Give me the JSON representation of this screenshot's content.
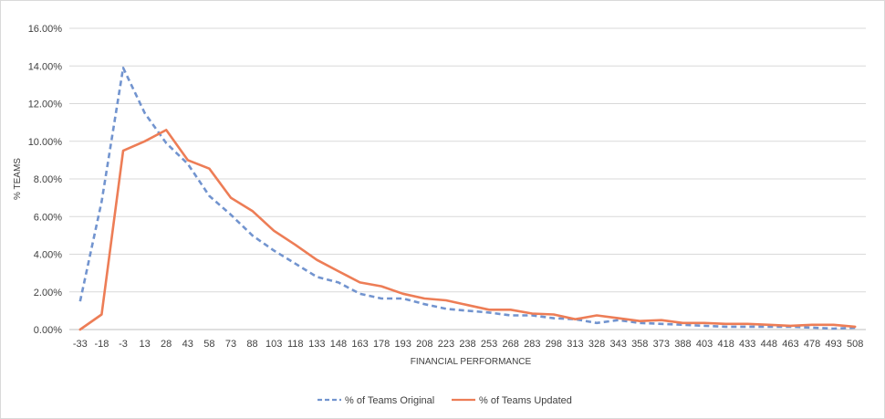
{
  "chart_data": {
    "type": "line",
    "title": "",
    "xlabel": "FINANCIAL PERFORMANCE",
    "ylabel": "% TEAMS",
    "ylim": [
      0,
      16
    ],
    "yticks": [
      "0.00%",
      "2.00%",
      "4.00%",
      "6.00%",
      "8.00%",
      "10.00%",
      "12.00%",
      "14.00%",
      "16.00%"
    ],
    "grid": true,
    "legend_position": "bottom",
    "categories": [
      "-33",
      "-18",
      "-3",
      "13",
      "28",
      "43",
      "58",
      "73",
      "88",
      "103",
      "118",
      "133",
      "148",
      "163",
      "178",
      "193",
      "208",
      "223",
      "238",
      "253",
      "268",
      "283",
      "298",
      "313",
      "328",
      "343",
      "358",
      "373",
      "388",
      "403",
      "418",
      "433",
      "448",
      "463",
      "478",
      "493",
      "508"
    ],
    "series": [
      {
        "name": "% of Teams Original",
        "color": "#7294cf",
        "dash": "dashed",
        "values": [
          1.5,
          6.8,
          13.9,
          11.5,
          9.9,
          8.8,
          7.1,
          6.1,
          5.0,
          4.2,
          3.5,
          2.8,
          2.5,
          1.9,
          1.65,
          1.65,
          1.35,
          1.1,
          1.0,
          0.9,
          0.75,
          0.75,
          0.6,
          0.55,
          0.35,
          0.5,
          0.35,
          0.3,
          0.25,
          0.2,
          0.15,
          0.15,
          0.15,
          0.15,
          0.1,
          0.05,
          0.1
        ]
      },
      {
        "name": "% of Teams Updated",
        "color": "#ed7d56",
        "dash": "solid",
        "values": [
          0.0,
          0.8,
          9.5,
          10.0,
          10.6,
          9.0,
          8.55,
          7.0,
          6.3,
          5.25,
          4.5,
          3.7,
          3.1,
          2.5,
          2.3,
          1.9,
          1.65,
          1.55,
          1.3,
          1.05,
          1.05,
          0.85,
          0.8,
          0.55,
          0.75,
          0.6,
          0.45,
          0.5,
          0.35,
          0.35,
          0.3,
          0.3,
          0.25,
          0.2,
          0.25,
          0.25,
          0.15
        ]
      }
    ]
  }
}
